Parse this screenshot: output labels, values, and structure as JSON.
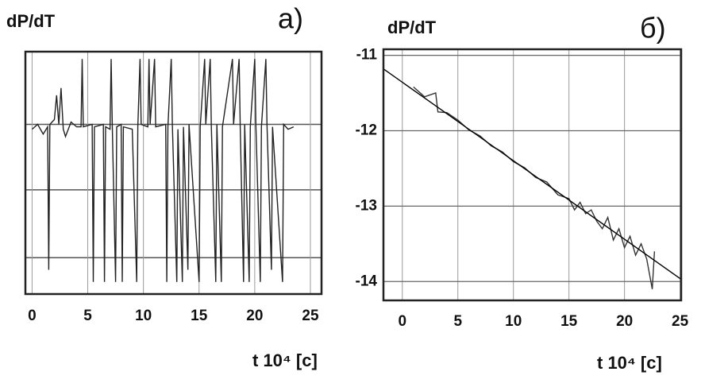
{
  "chart_data": [
    {
      "type": "line",
      "ylabel": "dP/dT",
      "panel": "а)",
      "xlabel": "t 10⁴ [c]",
      "xlim": [
        -0.6,
        26
      ],
      "xticks": [
        0,
        5,
        10,
        15,
        20,
        25
      ],
      "ylim": [
        0,
        1
      ],
      "grid": true,
      "x": [
        0,
        0.5,
        1,
        1.4,
        1.5,
        1.6,
        2,
        2.2,
        2.4,
        2.6,
        2.8,
        3,
        3.5,
        4,
        4.4,
        4.5,
        4.6,
        5.4,
        5.5,
        5.6,
        6.4,
        6.5,
        6.6,
        7,
        7.1,
        7.2,
        7.5,
        7.6,
        8,
        8.1,
        8.2,
        9,
        9.4,
        9.5,
        9.7,
        9.8,
        10.4,
        10.5,
        10.6,
        11,
        11.1,
        12,
        12.1,
        12.2,
        12.5,
        12.6,
        13,
        13.1,
        13.5,
        13.6,
        14,
        14.1,
        15,
        15.1,
        15.5,
        15.6,
        16,
        16.1,
        16.5,
        16.6,
        17,
        17.1,
        18,
        18.1,
        18.6,
        18.7,
        19,
        19.1,
        19.5,
        19.6,
        20,
        20.1,
        20.5,
        20.6,
        21,
        21.1,
        21.5,
        21.6,
        22.5,
        22.6,
        23,
        23.5
      ],
      "series": [
        {
          "color": "#222222",
          "values": [
            0.68,
            0.7,
            0.66,
            0.69,
            0.1,
            0.7,
            0.72,
            0.82,
            0.7,
            0.85,
            0.68,
            0.65,
            0.71,
            0.69,
            0.69,
            0.97,
            0.69,
            0.7,
            0.05,
            0.69,
            0.7,
            0.05,
            0.69,
            0.68,
            0.97,
            0.7,
            0.05,
            0.69,
            0.7,
            0.05,
            0.69,
            0.68,
            0.05,
            0.69,
            0.97,
            0.7,
            0.69,
            0.97,
            0.7,
            0.97,
            0.69,
            0.7,
            0.05,
            0.69,
            0.97,
            0.7,
            0.05,
            0.68,
            0.05,
            0.69,
            0.1,
            0.7,
            0.05,
            0.69,
            0.97,
            0.7,
            0.97,
            0.69,
            0.05,
            0.7,
            0.05,
            0.69,
            0.97,
            0.7,
            0.97,
            0.69,
            0.05,
            0.7,
            0.05,
            0.69,
            0.97,
            0.7,
            0.05,
            0.69,
            0.97,
            0.7,
            0.1,
            0.69,
            0.05,
            0.7,
            0.68,
            0.69
          ]
        }
      ]
    },
    {
      "type": "line",
      "ylabel": "dP/dT",
      "panel": "б)",
      "xlabel": "t 10⁴ [c]",
      "xlim": [
        -1.7,
        25.1
      ],
      "xticks": [
        0,
        5,
        10,
        15,
        20,
        25
      ],
      "ylim": [
        -14.25,
        -10.92
      ],
      "yticks": [
        -11,
        -12,
        -13,
        -14
      ],
      "grid": true,
      "series": [
        {
          "color": "#333333",
          "x": [
            1,
            2,
            3,
            3.2,
            4,
            5,
            6,
            7,
            8,
            9,
            10,
            11,
            12,
            13,
            14,
            15,
            15.5,
            16,
            16.5,
            17,
            17.5,
            18,
            18.5,
            19,
            19.5,
            20,
            20.5,
            21,
            21.5,
            22,
            22.5,
            22.7
          ],
          "values": [
            -11.42,
            -11.55,
            -11.5,
            -11.75,
            -11.76,
            -11.86,
            -11.99,
            -12.07,
            -12.2,
            -12.28,
            -12.41,
            -12.49,
            -12.62,
            -12.68,
            -12.85,
            -12.9,
            -13.05,
            -12.95,
            -13.1,
            -13.05,
            -13.2,
            -13.3,
            -13.15,
            -13.45,
            -13.3,
            -13.55,
            -13.4,
            -13.65,
            -13.5,
            -13.7,
            -14.1,
            -13.6
          ]
        },
        {
          "color": "#000000",
          "x": [
            -1.7,
            25.1
          ],
          "values": [
            -11.18,
            -13.97
          ]
        }
      ]
    }
  ]
}
